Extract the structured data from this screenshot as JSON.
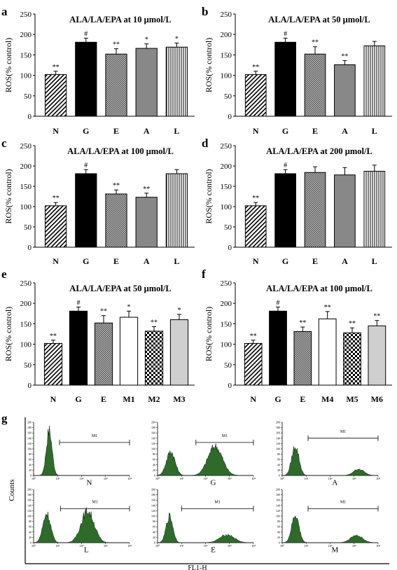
{
  "chart_data": [
    {
      "panel": "a",
      "type": "bar",
      "title": "ALA/LA/EPA at 10 μmol/L",
      "ylabel": "ROS(% control)",
      "ylim": [
        0,
        250
      ],
      "yticks": [
        0,
        50,
        100,
        150,
        200,
        250
      ],
      "categories": [
        "N",
        "G",
        "E",
        "A",
        "L"
      ],
      "values": [
        102,
        181,
        152,
        166,
        169
      ],
      "errors": [
        8,
        10,
        13,
        11,
        10
      ],
      "annotations": [
        "**",
        "#",
        "**",
        "*",
        "*"
      ]
    },
    {
      "panel": "b",
      "type": "bar",
      "title": "ALA/LA/EPA at 50 μmol/L",
      "ylabel": "ROS(% control)",
      "ylim": [
        0,
        250
      ],
      "yticks": [
        0,
        50,
        100,
        150,
        200,
        250
      ],
      "categories": [
        "N",
        "G",
        "E",
        "A",
        "L"
      ],
      "values": [
        102,
        181,
        152,
        126,
        172
      ],
      "errors": [
        8,
        10,
        18,
        10,
        11
      ],
      "annotations": [
        "**",
        "#",
        "**",
        "**",
        ""
      ]
    },
    {
      "panel": "c",
      "type": "bar",
      "title": "ALA/LA/EPA at 100 μmol/L",
      "ylabel": "ROS(% control)",
      "ylim": [
        0,
        250
      ],
      "yticks": [
        0,
        50,
        100,
        150,
        200,
        250
      ],
      "categories": [
        "N",
        "G",
        "E",
        "A",
        "L"
      ],
      "values": [
        102,
        181,
        131,
        123,
        181
      ],
      "errors": [
        8,
        10,
        10,
        10,
        10
      ],
      "annotations": [
        "**",
        "#",
        "**",
        "**",
        ""
      ]
    },
    {
      "panel": "d",
      "type": "bar",
      "title": "ALA/LA/EPA at 200 μmol/L",
      "ylabel": "ROS(% control)",
      "ylim": [
        0,
        250
      ],
      "yticks": [
        0,
        50,
        100,
        150,
        200,
        250
      ],
      "categories": [
        "N",
        "G",
        "E",
        "A",
        "L"
      ],
      "values": [
        102,
        181,
        184,
        178,
        187
      ],
      "errors": [
        8,
        10,
        14,
        18,
        15
      ],
      "annotations": [
        "**",
        "#",
        "",
        "",
        ""
      ]
    },
    {
      "panel": "e",
      "type": "bar",
      "title": "ALA/LA/EPA at 50 μmol/L",
      "ylabel": "ROS(% control)",
      "ylim": [
        0,
        250
      ],
      "yticks": [
        0,
        50,
        100,
        150,
        200,
        250
      ],
      "categories": [
        "N",
        "G",
        "E",
        "M1",
        "M2",
        "M3"
      ],
      "values": [
        102,
        181,
        152,
        166,
        132,
        160
      ],
      "errors": [
        8,
        10,
        18,
        15,
        11,
        13
      ],
      "annotations": [
        "**",
        "#",
        "**",
        "*",
        "**",
        "*"
      ]
    },
    {
      "panel": "f",
      "type": "bar",
      "title": "ALA/LA/EPA at 100 μmol/L",
      "ylabel": "ROS(% control)",
      "ylim": [
        0,
        250
      ],
      "yticks": [
        0,
        50,
        100,
        150,
        200,
        250
      ],
      "categories": [
        "N",
        "G",
        "E",
        "M4",
        "M5",
        "M6"
      ],
      "values": [
        102,
        181,
        131,
        162,
        128,
        145
      ],
      "errors": [
        8,
        10,
        11,
        18,
        12,
        13
      ],
      "annotations": [
        "**",
        "#",
        "**",
        "**",
        "**",
        "**"
      ]
    }
  ],
  "flow_cytometry": {
    "panel": "g",
    "ylabel": "Counts",
    "xlabel": "FL1-H",
    "gate_label": "M1",
    "yticks": [
      "0",
      "20",
      "40",
      "60",
      "80",
      "100",
      "120",
      "140",
      "160",
      "180",
      "200"
    ],
    "xticks": [
      "10⁰",
      "10¹",
      "10²",
      "10³",
      "10⁴"
    ],
    "histograms": [
      {
        "label": "N",
        "peaks": [
          [
            0.65,
            0.85,
            0.12
          ]
        ]
      },
      {
        "label": "G",
        "peaks": [
          [
            0.55,
            0.45,
            0.18
          ],
          [
            2.4,
            0.55,
            0.3
          ]
        ]
      },
      {
        "label": "A",
        "peaks": [
          [
            0.55,
            0.55,
            0.15
          ],
          [
            3.2,
            0.12,
            0.22
          ]
        ]
      },
      {
        "label": "L",
        "peaks": [
          [
            0.55,
            0.55,
            0.16
          ],
          [
            2.25,
            0.6,
            0.27
          ]
        ]
      },
      {
        "label": "E",
        "peaks": [
          [
            0.5,
            0.5,
            0.14
          ],
          [
            2.9,
            0.15,
            0.3
          ]
        ]
      },
      {
        "label": "M",
        "peaks": [
          [
            0.55,
            0.52,
            0.15
          ],
          [
            3.1,
            0.14,
            0.25
          ]
        ]
      }
    ]
  },
  "colors": {
    "g_bar": "#000000",
    "a_bar": "#888888",
    "l_fill": "#ffffff",
    "m3_bar": "#cfcfcf",
    "m6_bar": "#cfcfcf",
    "histogram_fill": "#2e6b2a"
  }
}
